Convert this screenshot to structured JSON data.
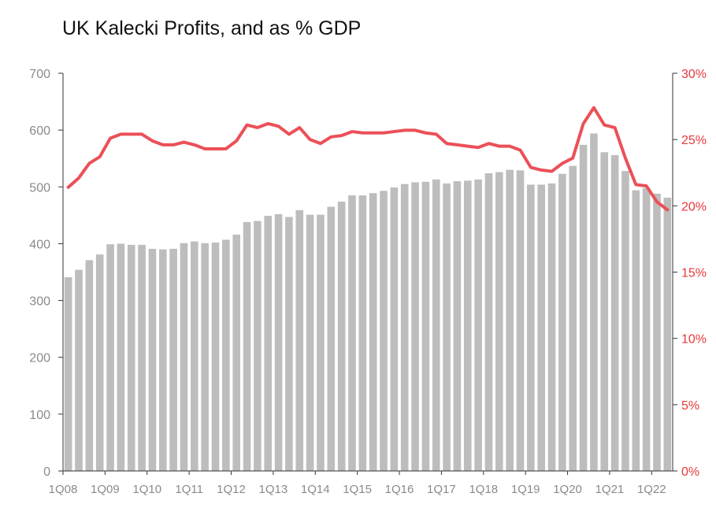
{
  "chart_data": {
    "type": "bar+line",
    "title": "UK Kalecki Profits, and as % GDP",
    "xlabel": "",
    "ylabel_left": "",
    "ylabel_right": "",
    "ylim_left": [
      0,
      700
    ],
    "ylim_right": [
      0,
      30
    ],
    "left_ticks": [
      "0",
      "100",
      "200",
      "300",
      "400",
      "500",
      "600",
      "700"
    ],
    "right_ticks": [
      "0%",
      "5%",
      "10%",
      "15%",
      "20%",
      "25%",
      "30%"
    ],
    "x_tick_labels": [
      "1Q08",
      "1Q09",
      "1Q10",
      "1Q11",
      "1Q12",
      "1Q13",
      "1Q14",
      "1Q15",
      "1Q16",
      "1Q17",
      "1Q18",
      "1Q19",
      "1Q20",
      "1Q21",
      "1Q22"
    ],
    "grid": false,
    "legend": "none",
    "colors": {
      "bars": "#bdbdbd",
      "line": "#eb5058",
      "left_axis_text": "#8a8a8a",
      "right_axis_text": "#e8383c"
    },
    "series": [
      {
        "type": "bar",
        "axis": "left",
        "values": [
          341,
          354,
          371,
          381,
          399,
          400,
          398,
          398,
          391,
          390,
          391,
          401,
          404,
          401,
          402,
          407,
          416,
          438,
          440,
          449,
          452,
          447,
          459,
          451,
          451,
          465,
          474,
          485,
          485,
          489,
          493,
          499,
          505,
          508,
          509,
          513,
          506,
          510,
          511,
          513,
          524,
          526,
          530,
          529,
          504,
          504,
          506,
          523,
          537,
          574,
          594,
          561,
          556,
          528,
          494,
          498,
          488,
          481
        ]
      },
      {
        "type": "line",
        "axis": "right",
        "values": [
          21.4,
          22.1,
          23.2,
          23.7,
          25.1,
          25.4,
          25.4,
          25.4,
          24.9,
          24.6,
          24.6,
          24.8,
          24.6,
          24.3,
          24.3,
          24.3,
          24.9,
          26.1,
          25.9,
          26.2,
          26.0,
          25.4,
          25.9,
          25.0,
          24.7,
          25.2,
          25.3,
          25.6,
          25.5,
          25.5,
          25.5,
          25.6,
          25.7,
          25.7,
          25.5,
          25.4,
          24.7,
          24.6,
          24.5,
          24.4,
          24.7,
          24.5,
          24.5,
          24.2,
          22.9,
          22.7,
          22.6,
          23.2,
          23.6,
          26.2,
          27.4,
          26.1,
          25.9,
          23.6,
          21.6,
          21.5,
          20.3,
          19.7
        ]
      }
    ]
  }
}
